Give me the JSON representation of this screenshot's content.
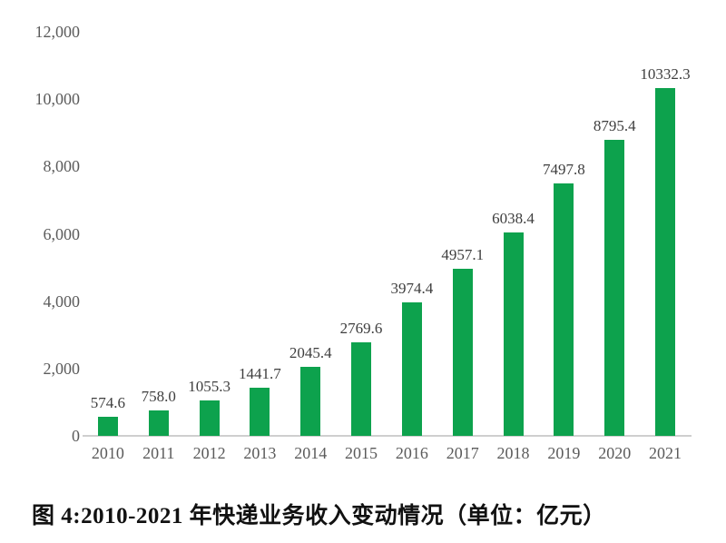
{
  "chart_data": {
    "type": "bar",
    "categories": [
      "2010",
      "2011",
      "2012",
      "2013",
      "2014",
      "2015",
      "2016",
      "2017",
      "2018",
      "2019",
      "2020",
      "2021"
    ],
    "values": [
      574.6,
      758.0,
      1055.3,
      1441.7,
      2045.4,
      2769.6,
      3974.4,
      4957.1,
      6038.4,
      7497.8,
      8795.4,
      10332.3
    ],
    "value_labels": [
      "574.6",
      "758.0",
      "1055.3",
      "1441.7",
      "2045.4",
      "2769.6",
      "3974.4",
      "4957.1",
      "6038.4",
      "7497.8",
      "8795.4",
      "10332.3"
    ],
    "title": "图 4:2010-2021 年快递业务收入变动情况（单位：亿元）",
    "unit": "亿元",
    "xlabel": "",
    "ylabel": "",
    "ylim": [
      0,
      12000
    ],
    "ytick_interval": 2000,
    "yticks": [
      "0",
      "2,000",
      "4,000",
      "6,000",
      "8,000",
      "10,000",
      "12,000"
    ],
    "grid": false,
    "legend": "none",
    "bar_color": "#0da24d",
    "axis_label_color": "#5b5b5b",
    "value_label_color": "#3e3e3e",
    "baseline_color": "#cfcfcf"
  }
}
